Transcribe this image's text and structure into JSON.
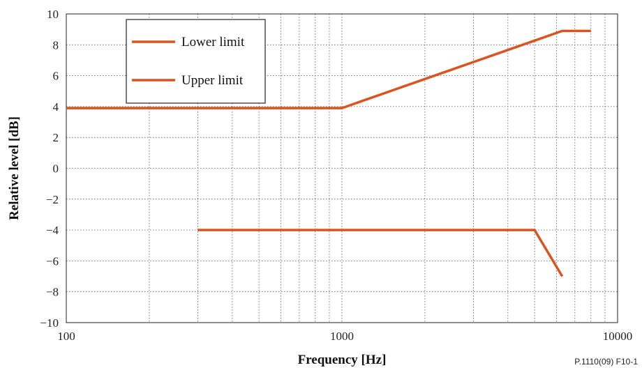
{
  "chart_data": {
    "type": "line",
    "xlabel": "Frequency [Hz]",
    "ylabel": "Relative level [dB]",
    "xscale": "log",
    "xlim": [
      100,
      10000
    ],
    "ylim": [
      -10,
      10
    ],
    "x_ticks": [
      {
        "value": 100,
        "label": "100"
      },
      {
        "value": 1000,
        "label": "1000"
      },
      {
        "value": 10000,
        "label": "10000"
      }
    ],
    "y_ticks": [
      {
        "value": 10,
        "label": "10"
      },
      {
        "value": 8,
        "label": "8"
      },
      {
        "value": 6,
        "label": "6"
      },
      {
        "value": 4,
        "label": "4"
      },
      {
        "value": 2,
        "label": "2"
      },
      {
        "value": 0,
        "label": "0"
      },
      {
        "value": -2,
        "label": "−2"
      },
      {
        "value": -4,
        "label": "−4"
      },
      {
        "value": -6,
        "label": "−6"
      },
      {
        "value": -8,
        "label": "−8"
      },
      {
        "value": -10,
        "label": "−10"
      }
    ],
    "grid": "dotted, major and minor (log)",
    "legend_position": "top-left",
    "series": [
      {
        "name": "Lower limit",
        "color": "#d9541e",
        "points": [
          [
            100,
            3.9
          ],
          [
            1000,
            3.9
          ],
          [
            6300,
            8.9
          ],
          [
            8000,
            8.9
          ]
        ]
      },
      {
        "name": "Upper limit",
        "color": "#d9541e",
        "points": [
          [
            300,
            -4
          ],
          [
            5000,
            -4
          ],
          [
            6300,
            -7
          ]
        ]
      }
    ],
    "figure_id": "P.1110(09)  F10-1"
  }
}
